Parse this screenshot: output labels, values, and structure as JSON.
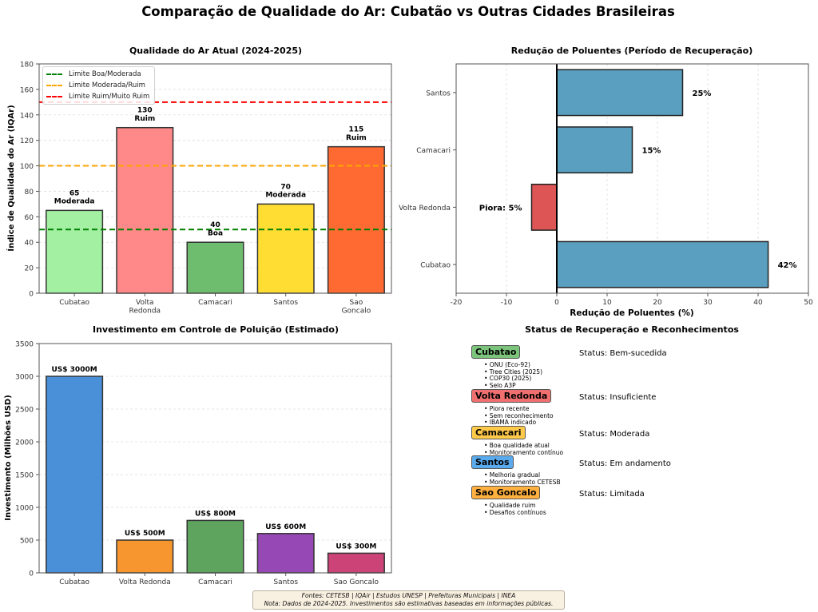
{
  "figure_title": "Comparação de Qualidade do Ar: Cubatão vs Outras Cidades Brasileiras",
  "chart_data": [
    {
      "type": "bar",
      "title": "Qualidade do Ar Atual (2024-2025)",
      "xlabel": "",
      "ylabel": "Índice de Qualidade do Ar (IQAr)",
      "categories": [
        "Cubatao",
        "Volta\nRedonda",
        "Camacari",
        "Santos",
        "Sao\nGoncalo"
      ],
      "values": [
        65,
        130,
        40,
        70,
        115
      ],
      "bar_labels": [
        "65\nModerada",
        "130\nRuim",
        "40\nBoa",
        "70\nModerada",
        "115\nRuim"
      ],
      "colors": [
        "#a3f0a3",
        "#ff8888",
        "#6ebd6e",
        "#ffdd33",
        "#ff6a33"
      ],
      "ylim": [
        0,
        180
      ],
      "yticks": [
        0,
        20,
        40,
        60,
        80,
        100,
        120,
        140,
        160,
        180
      ],
      "grid": "y",
      "reference_lines": [
        {
          "label": "Limite Boa/Moderada",
          "value": 50,
          "color": "#008000"
        },
        {
          "label": "Limite Moderada/Ruim",
          "value": 100,
          "color": "#ffa500"
        },
        {
          "label": "Limite Ruim/Muito Ruim",
          "value": 150,
          "color": "#ff0000"
        }
      ],
      "legend_position": "top-left"
    },
    {
      "type": "bar",
      "orientation": "horizontal",
      "title": "Redução de Poluentes (Período de Recuperação)",
      "xlabel": "Redução de Poluentes (%)",
      "ylabel": "",
      "categories": [
        "Cubatao",
        "Volta Redonda",
        "Camacari",
        "Santos"
      ],
      "values": [
        42,
        -5,
        15,
        25
      ],
      "bar_labels": [
        "42%",
        "Piora: 5%",
        "15%",
        "25%"
      ],
      "colors": [
        "#5a9fbf",
        "#dd5555",
        "#5a9fbf",
        "#5a9fbf"
      ],
      "xlim": [
        -20,
        50
      ],
      "xticks": [
        -20,
        -10,
        0,
        10,
        20,
        30,
        40,
        50
      ],
      "grid": "x"
    },
    {
      "type": "bar",
      "title": "Investimento em Controle de Poluição (Estimado)",
      "xlabel": "",
      "ylabel": "Investimento (Milhões USD)",
      "categories": [
        "Cubatao",
        "Volta Redonda",
        "Camacari",
        "Santos",
        "Sao Goncalo"
      ],
      "values": [
        3000,
        500,
        800,
        600,
        300
      ],
      "bar_labels": [
        "US$ 3000M",
        "US$ 500M",
        "US$ 800M",
        "US$ 600M",
        "US$ 300M"
      ],
      "colors": [
        "#4a90d9",
        "#f7962f",
        "#5ea35e",
        "#9649b5",
        "#cc4477"
      ],
      "ylim": [
        0,
        3500
      ],
      "yticks": [
        0,
        500,
        1000,
        1500,
        2000,
        2500,
        3000,
        3500
      ],
      "grid": "y"
    }
  ],
  "status_panel": {
    "title": "Status de Recuperação e Reconhecimentos",
    "cities": [
      {
        "name": "Cubatao",
        "color": "#7cc47c",
        "status": "Status: Bem-sucedida",
        "items": [
          "• ONU (Eco-92)",
          "• Tree Cities (2025)",
          "• COP30 (2025)",
          "• Selo A3P"
        ]
      },
      {
        "name": "Volta Redonda",
        "color": "#f07070",
        "status": "Status: Insuficiente",
        "items": [
          "• Piora recente",
          "• Sem reconhecimento",
          "• IBAMA indicado"
        ]
      },
      {
        "name": "Camacari",
        "color": "#ffc94a",
        "status": "Status: Moderada",
        "items": [
          "• Boa qualidade atual",
          "• Monitoramento contínuo"
        ]
      },
      {
        "name": "Santos",
        "color": "#5aaaee",
        "status": "Status: Em andamento",
        "items": [
          "• Melhoria gradual",
          "• Monitoramento CETESB"
        ]
      },
      {
        "name": "Sao Goncalo",
        "color": "#ffb040",
        "status": "Status: Limitada",
        "items": [
          "• Qualidade ruim",
          "• Desafios contínuos"
        ]
      }
    ]
  },
  "footer": {
    "line1": "Fontes: CETESB | IQAir | Estudos UNESP | Prefeituras Municipais | INEA",
    "line2": "Nota: Dados de 2024-2025. Investimentos são estimativas baseadas em informações públicas."
  }
}
